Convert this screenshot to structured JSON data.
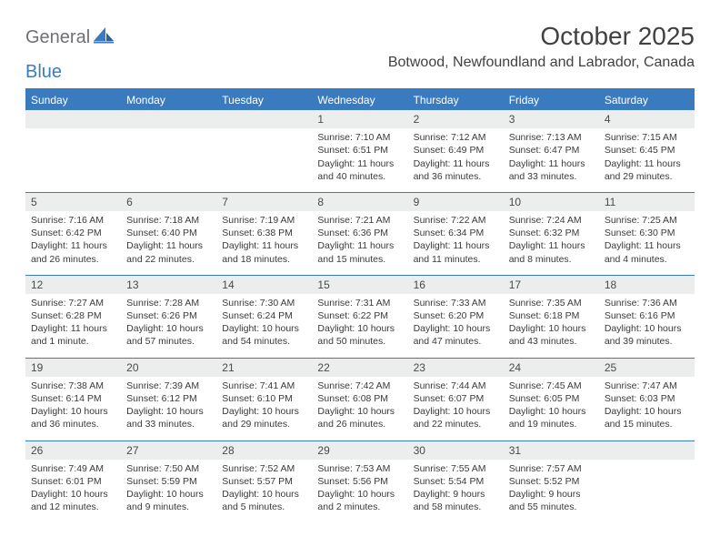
{
  "brand": {
    "text1": "General",
    "text2": "Blue"
  },
  "title": "October 2025",
  "location": "Botwood, Newfoundland and Labrador, Canada",
  "colors": {
    "accent": "#3a7bbf",
    "band": "#eceded",
    "text": "#3a3a3a",
    "title": "#414141",
    "logoGray": "#6f7074"
  },
  "daysOfWeek": [
    "Sunday",
    "Monday",
    "Tuesday",
    "Wednesday",
    "Thursday",
    "Friday",
    "Saturday"
  ],
  "weeks": [
    [
      {
        "num": "",
        "sunrise": "",
        "sunset": "",
        "daylight": ""
      },
      {
        "num": "",
        "sunrise": "",
        "sunset": "",
        "daylight": ""
      },
      {
        "num": "",
        "sunrise": "",
        "sunset": "",
        "daylight": ""
      },
      {
        "num": "1",
        "sunrise": "Sunrise: 7:10 AM",
        "sunset": "Sunset: 6:51 PM",
        "daylight": "Daylight: 11 hours and 40 minutes."
      },
      {
        "num": "2",
        "sunrise": "Sunrise: 7:12 AM",
        "sunset": "Sunset: 6:49 PM",
        "daylight": "Daylight: 11 hours and 36 minutes."
      },
      {
        "num": "3",
        "sunrise": "Sunrise: 7:13 AM",
        "sunset": "Sunset: 6:47 PM",
        "daylight": "Daylight: 11 hours and 33 minutes."
      },
      {
        "num": "4",
        "sunrise": "Sunrise: 7:15 AM",
        "sunset": "Sunset: 6:45 PM",
        "daylight": "Daylight: 11 hours and 29 minutes."
      }
    ],
    [
      {
        "num": "5",
        "sunrise": "Sunrise: 7:16 AM",
        "sunset": "Sunset: 6:42 PM",
        "daylight": "Daylight: 11 hours and 26 minutes."
      },
      {
        "num": "6",
        "sunrise": "Sunrise: 7:18 AM",
        "sunset": "Sunset: 6:40 PM",
        "daylight": "Daylight: 11 hours and 22 minutes."
      },
      {
        "num": "7",
        "sunrise": "Sunrise: 7:19 AM",
        "sunset": "Sunset: 6:38 PM",
        "daylight": "Daylight: 11 hours and 18 minutes."
      },
      {
        "num": "8",
        "sunrise": "Sunrise: 7:21 AM",
        "sunset": "Sunset: 6:36 PM",
        "daylight": "Daylight: 11 hours and 15 minutes."
      },
      {
        "num": "9",
        "sunrise": "Sunrise: 7:22 AM",
        "sunset": "Sunset: 6:34 PM",
        "daylight": "Daylight: 11 hours and 11 minutes."
      },
      {
        "num": "10",
        "sunrise": "Sunrise: 7:24 AM",
        "sunset": "Sunset: 6:32 PM",
        "daylight": "Daylight: 11 hours and 8 minutes."
      },
      {
        "num": "11",
        "sunrise": "Sunrise: 7:25 AM",
        "sunset": "Sunset: 6:30 PM",
        "daylight": "Daylight: 11 hours and 4 minutes."
      }
    ],
    [
      {
        "num": "12",
        "sunrise": "Sunrise: 7:27 AM",
        "sunset": "Sunset: 6:28 PM",
        "daylight": "Daylight: 11 hours and 1 minute."
      },
      {
        "num": "13",
        "sunrise": "Sunrise: 7:28 AM",
        "sunset": "Sunset: 6:26 PM",
        "daylight": "Daylight: 10 hours and 57 minutes."
      },
      {
        "num": "14",
        "sunrise": "Sunrise: 7:30 AM",
        "sunset": "Sunset: 6:24 PM",
        "daylight": "Daylight: 10 hours and 54 minutes."
      },
      {
        "num": "15",
        "sunrise": "Sunrise: 7:31 AM",
        "sunset": "Sunset: 6:22 PM",
        "daylight": "Daylight: 10 hours and 50 minutes."
      },
      {
        "num": "16",
        "sunrise": "Sunrise: 7:33 AM",
        "sunset": "Sunset: 6:20 PM",
        "daylight": "Daylight: 10 hours and 47 minutes."
      },
      {
        "num": "17",
        "sunrise": "Sunrise: 7:35 AM",
        "sunset": "Sunset: 6:18 PM",
        "daylight": "Daylight: 10 hours and 43 minutes."
      },
      {
        "num": "18",
        "sunrise": "Sunrise: 7:36 AM",
        "sunset": "Sunset: 6:16 PM",
        "daylight": "Daylight: 10 hours and 39 minutes."
      }
    ],
    [
      {
        "num": "19",
        "sunrise": "Sunrise: 7:38 AM",
        "sunset": "Sunset: 6:14 PM",
        "daylight": "Daylight: 10 hours and 36 minutes."
      },
      {
        "num": "20",
        "sunrise": "Sunrise: 7:39 AM",
        "sunset": "Sunset: 6:12 PM",
        "daylight": "Daylight: 10 hours and 33 minutes."
      },
      {
        "num": "21",
        "sunrise": "Sunrise: 7:41 AM",
        "sunset": "Sunset: 6:10 PM",
        "daylight": "Daylight: 10 hours and 29 minutes."
      },
      {
        "num": "22",
        "sunrise": "Sunrise: 7:42 AM",
        "sunset": "Sunset: 6:08 PM",
        "daylight": "Daylight: 10 hours and 26 minutes."
      },
      {
        "num": "23",
        "sunrise": "Sunrise: 7:44 AM",
        "sunset": "Sunset: 6:07 PM",
        "daylight": "Daylight: 10 hours and 22 minutes."
      },
      {
        "num": "24",
        "sunrise": "Sunrise: 7:45 AM",
        "sunset": "Sunset: 6:05 PM",
        "daylight": "Daylight: 10 hours and 19 minutes."
      },
      {
        "num": "25",
        "sunrise": "Sunrise: 7:47 AM",
        "sunset": "Sunset: 6:03 PM",
        "daylight": "Daylight: 10 hours and 15 minutes."
      }
    ],
    [
      {
        "num": "26",
        "sunrise": "Sunrise: 7:49 AM",
        "sunset": "Sunset: 6:01 PM",
        "daylight": "Daylight: 10 hours and 12 minutes."
      },
      {
        "num": "27",
        "sunrise": "Sunrise: 7:50 AM",
        "sunset": "Sunset: 5:59 PM",
        "daylight": "Daylight: 10 hours and 9 minutes."
      },
      {
        "num": "28",
        "sunrise": "Sunrise: 7:52 AM",
        "sunset": "Sunset: 5:57 PM",
        "daylight": "Daylight: 10 hours and 5 minutes."
      },
      {
        "num": "29",
        "sunrise": "Sunrise: 7:53 AM",
        "sunset": "Sunset: 5:56 PM",
        "daylight": "Daylight: 10 hours and 2 minutes."
      },
      {
        "num": "30",
        "sunrise": "Sunrise: 7:55 AM",
        "sunset": "Sunset: 5:54 PM",
        "daylight": "Daylight: 9 hours and 58 minutes."
      },
      {
        "num": "31",
        "sunrise": "Sunrise: 7:57 AM",
        "sunset": "Sunset: 5:52 PM",
        "daylight": "Daylight: 9 hours and 55 minutes."
      },
      {
        "num": "",
        "sunrise": "",
        "sunset": "",
        "daylight": ""
      }
    ]
  ]
}
